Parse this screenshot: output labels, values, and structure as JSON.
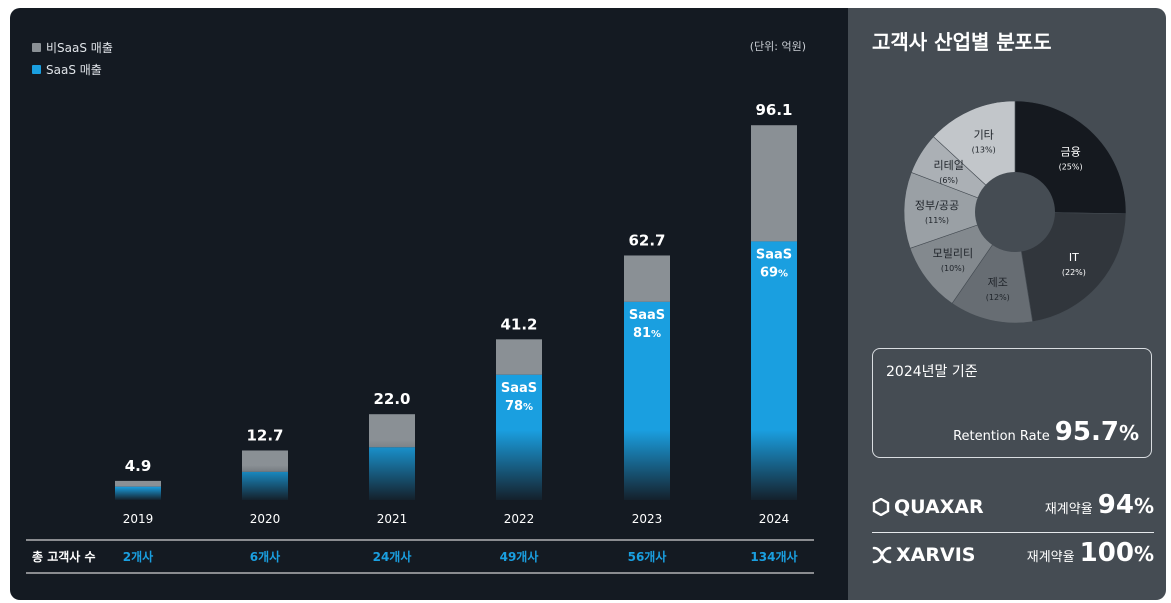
{
  "legend": [
    {
      "label": "비SaaS 매출",
      "color": "#8a9095"
    },
    {
      "label": "SaaS 매출",
      "color": "#1a9fe0"
    }
  ],
  "unit_note": "(단위: 억원)",
  "colors": {
    "non_saas": "#8a9095",
    "saas": "#1a9fe0",
    "customers_text": "#1a9fe0"
  },
  "customers_row_label": "총 고객사 수",
  "chart_data": [
    {
      "type": "bar",
      "stacked": true,
      "categories": [
        "2019",
        "2020",
        "2021",
        "2022",
        "2023",
        "2024"
      ],
      "totals": [
        4.9,
        12.7,
        22.0,
        41.2,
        62.7,
        96.1
      ],
      "total_labels": [
        "4.9",
        "12.7",
        "22.0",
        "41.2",
        "62.7",
        "96.1"
      ],
      "series": [
        {
          "name": "비SaaS 매출",
          "values": [
            1.5,
            5.5,
            8.5,
            9.1,
            11.9,
            29.8
          ]
        },
        {
          "name": "SaaS 매출",
          "values": [
            3.4,
            7.2,
            13.5,
            32.1,
            50.8,
            66.3
          ]
        }
      ],
      "saas_share_labels": [
        {
          "category": "2022",
          "label": "SaaS",
          "value": "78",
          "unit": "%"
        },
        {
          "category": "2023",
          "label": "SaaS",
          "value": "81",
          "unit": "%"
        },
        {
          "category": "2024",
          "label": "SaaS",
          "value": "69",
          "unit": "%"
        }
      ],
      "customers": [
        "2개사",
        "6개사",
        "24개사",
        "49개사",
        "56개사",
        "134개사"
      ],
      "ylim": [
        0,
        100
      ]
    },
    {
      "type": "pie",
      "title": "고객사 산업별 분포도",
      "donut": true,
      "slices": [
        {
          "label": "금융",
          "pct_label": "(25%)",
          "value": 25,
          "color": "#15191f"
        },
        {
          "label": "IT",
          "pct_label": "(22%)",
          "value": 22,
          "color": "#31363c"
        },
        {
          "label": "제조",
          "pct_label": "(12%)",
          "value": 12,
          "color": "#676d73"
        },
        {
          "label": "모빌리티",
          "pct_label": "(10%)",
          "value": 10,
          "color": "#83898e"
        },
        {
          "label": "정부/공공",
          "pct_label": "(11%)",
          "value": 11,
          "color": "#9aa0a5"
        },
        {
          "label": "리테일",
          "pct_label": "(6%)",
          "value": 6,
          "color": "#abb0b5"
        },
        {
          "label": "기타",
          "pct_label": "(13%)",
          "value": 13,
          "color": "#c2c6ca"
        }
      ]
    }
  ],
  "retention": {
    "period": "2024년말 기준",
    "label": "Retention Rate",
    "value": "95.7",
    "unit": "%"
  },
  "brands": [
    {
      "name": "QUAXAR",
      "icon": "quaxar-logo-icon",
      "rate_label": "재계약율",
      "rate_value": "94",
      "unit": "%"
    },
    {
      "name": "XARVIS",
      "icon": "xarvis-logo-icon",
      "rate_label": "재계약율",
      "rate_value": "100",
      "unit": "%"
    }
  ]
}
